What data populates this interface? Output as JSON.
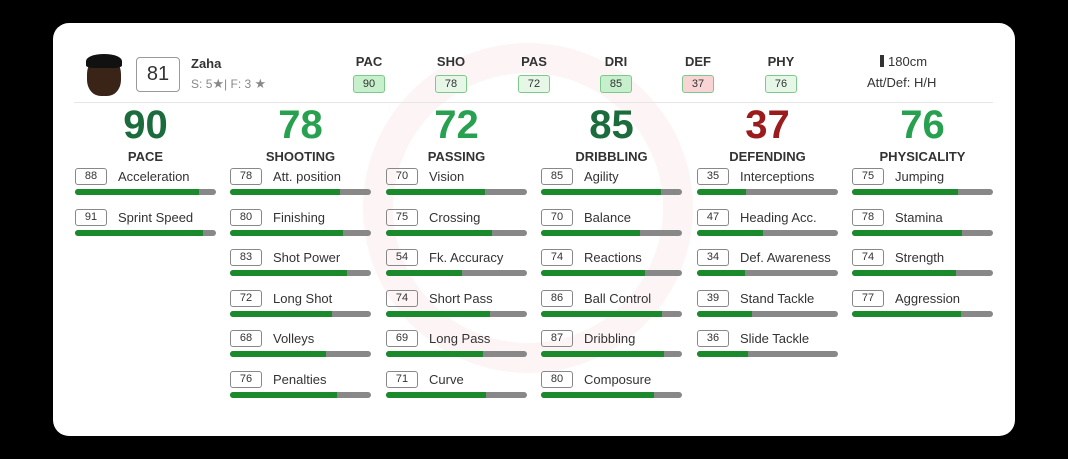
{
  "player": {
    "name": "Zaha",
    "rating": 81,
    "skills": {
      "label": "S:",
      "value": 5
    },
    "weak_foot": {
      "label": "F:",
      "value": 3
    },
    "height": "180cm",
    "work_rates": "Att/Def: H/H"
  },
  "summary": [
    {
      "label": "PAC",
      "value": 90,
      "color": "#c6efcb"
    },
    {
      "label": "SHO",
      "value": 78,
      "color": "#e6f7e8"
    },
    {
      "label": "PAS",
      "value": 72,
      "color": "#e6f7e8"
    },
    {
      "label": "DRI",
      "value": 85,
      "color": "#c6efcb"
    },
    {
      "label": "DEF",
      "value": 37,
      "color": "#f8d4d4"
    },
    {
      "label": "PHY",
      "value": 76,
      "color": "#e6f7e8"
    }
  ],
  "categories": [
    {
      "name": "PACE",
      "value": 90,
      "color": "#1c6b3c",
      "stats": [
        {
          "name": "Acceleration",
          "value": 88
        },
        {
          "name": "Sprint Speed",
          "value": 91
        }
      ]
    },
    {
      "name": "SHOOTING",
      "value": 78,
      "color": "#27a050",
      "stats": [
        {
          "name": "Att. position",
          "value": 78
        },
        {
          "name": "Finishing",
          "value": 80
        },
        {
          "name": "Shot Power",
          "value": 83
        },
        {
          "name": "Long Shot",
          "value": 72
        },
        {
          "name": "Volleys",
          "value": 68
        },
        {
          "name": "Penalties",
          "value": 76
        }
      ]
    },
    {
      "name": "PASSING",
      "value": 72,
      "color": "#27a050",
      "stats": [
        {
          "name": "Vision",
          "value": 70
        },
        {
          "name": "Crossing",
          "value": 75
        },
        {
          "name": "Fk. Accuracy",
          "value": 54
        },
        {
          "name": "Short Pass",
          "value": 74
        },
        {
          "name": "Long Pass",
          "value": 69
        },
        {
          "name": "Curve",
          "value": 71
        }
      ]
    },
    {
      "name": "DRIBBLING",
      "value": 85,
      "color": "#1c6b3c",
      "stats": [
        {
          "name": "Agility",
          "value": 85
        },
        {
          "name": "Balance",
          "value": 70
        },
        {
          "name": "Reactions",
          "value": 74
        },
        {
          "name": "Ball Control",
          "value": 86
        },
        {
          "name": "Dribbling",
          "value": 87
        },
        {
          "name": "Composure",
          "value": 80
        }
      ]
    },
    {
      "name": "DEFENDING",
      "value": 37,
      "color": "#9b1c1c",
      "stats": [
        {
          "name": "Interceptions",
          "value": 35
        },
        {
          "name": "Heading Acc.",
          "value": 47
        },
        {
          "name": "Def. Awareness",
          "value": 34
        },
        {
          "name": "Stand Tackle",
          "value": 39
        },
        {
          "name": "Slide Tackle",
          "value": 36
        }
      ]
    },
    {
      "name": "PHYSICALITY",
      "value": 76,
      "color": "#27a050",
      "stats": [
        {
          "name": "Jumping",
          "value": 75
        },
        {
          "name": "Stamina",
          "value": 78
        },
        {
          "name": "Strength",
          "value": 74
        },
        {
          "name": "Aggression",
          "value": 77
        }
      ]
    }
  ]
}
